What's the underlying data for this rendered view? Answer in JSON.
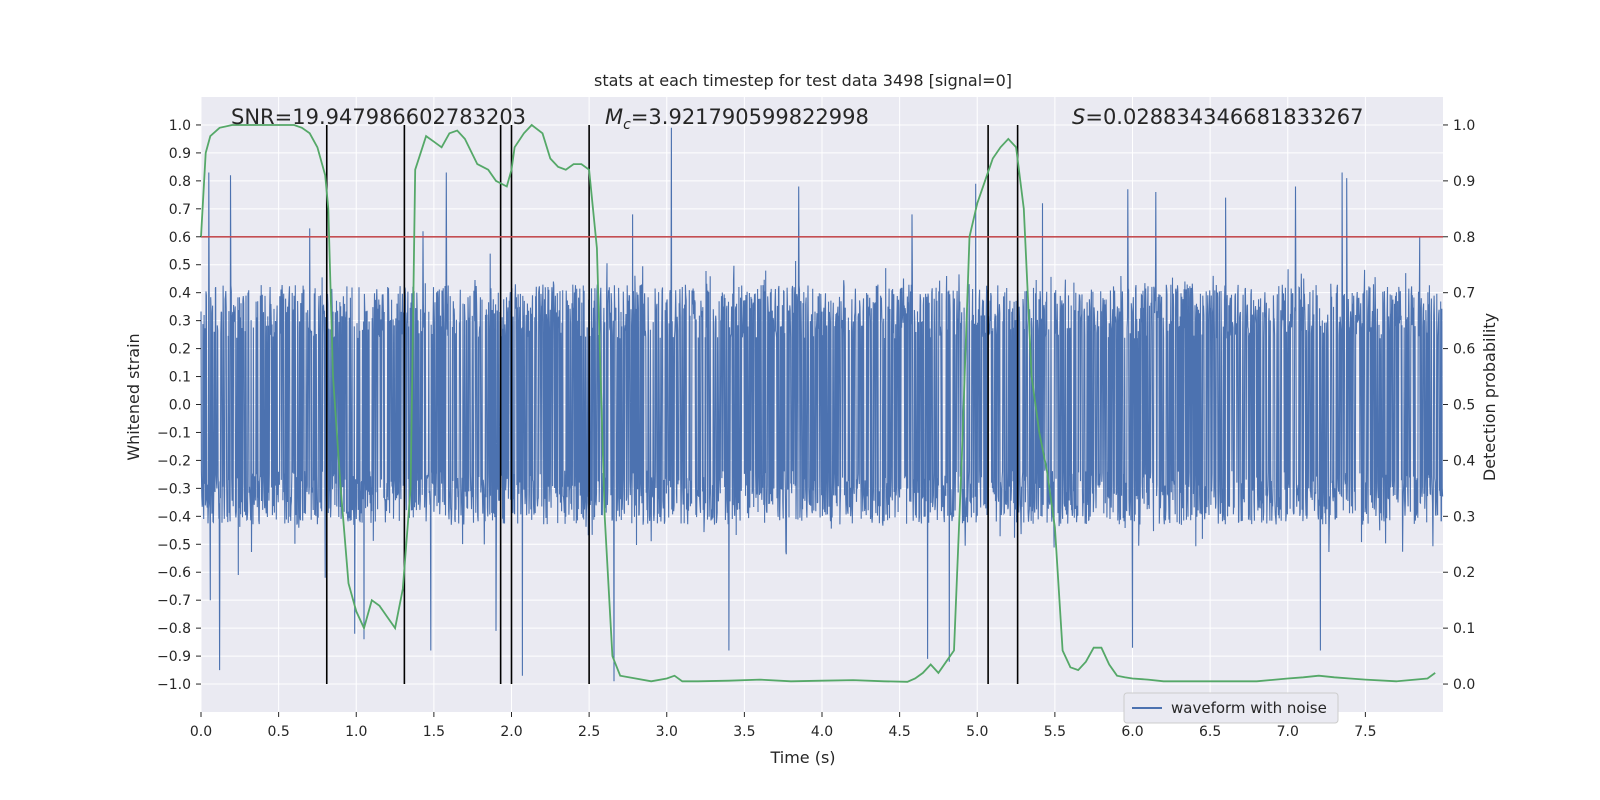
{
  "chart_data": {
    "type": "line",
    "title": "stats at each timestep for test data 3498 [signal=0]",
    "xlabel": "Time (s)",
    "ylabel_left": "Whitened strain",
    "ylabel_right": "Detection probability",
    "xlim": [
      0.0,
      8.0
    ],
    "ylim_left": [
      -1.1,
      1.1
    ],
    "ylim_right": [
      -0.05,
      1.05
    ],
    "x_ticks": [
      "0.0",
      "0.5",
      "1.0",
      "1.5",
      "2.0",
      "2.5",
      "3.0",
      "3.5",
      "4.0",
      "4.5",
      "5.0",
      "5.5",
      "6.0",
      "6.5",
      "7.0",
      "7.5"
    ],
    "x_tick_values": [
      0.0,
      0.5,
      1.0,
      1.5,
      2.0,
      2.5,
      3.0,
      3.5,
      4.0,
      4.5,
      5.0,
      5.5,
      6.0,
      6.5,
      7.0,
      7.5
    ],
    "y_left_ticks": [
      "1.0",
      "0.9",
      "0.8",
      "0.7",
      "0.6",
      "0.5",
      "0.4",
      "0.3",
      "0.2",
      "0.1",
      "0.0",
      "−0.1",
      "−0.2",
      "−0.3",
      "−0.4",
      "−0.5",
      "−0.6",
      "−0.7",
      "−0.8",
      "−0.9",
      "−1.0"
    ],
    "y_left_tick_values": [
      1.0,
      0.9,
      0.8,
      0.7,
      0.6,
      0.5,
      0.4,
      0.3,
      0.2,
      0.1,
      0.0,
      -0.1,
      -0.2,
      -0.3,
      -0.4,
      -0.5,
      -0.6,
      -0.7,
      -0.8,
      -0.9,
      -1.0
    ],
    "y_right_ticks": [
      "1.0",
      "0.9",
      "0.8",
      "0.7",
      "0.6",
      "0.5",
      "0.4",
      "0.3",
      "0.2",
      "0.1",
      "0.0"
    ],
    "y_right_tick_values": [
      1.0,
      0.9,
      0.8,
      0.7,
      0.6,
      0.5,
      0.4,
      0.3,
      0.2,
      0.1,
      0.0
    ],
    "annotations": {
      "snr": "SNR=19.947986602783203",
      "mc_symbol": "M",
      "mc_sub": "c",
      "mc_value": "=3.921790599822998",
      "s_symbol": "S",
      "s_value": "=0.028834346681833267"
    },
    "threshold": {
      "value": 0.8,
      "axis": "right",
      "color": "#c44e52"
    },
    "vertical_lines": [
      0.81,
      1.31,
      1.93,
      2.0,
      2.5,
      5.07,
      5.26
    ],
    "vertical_lines_range": [
      -1.0,
      1.0
    ],
    "waveform": {
      "name": "waveform with noise",
      "color": "#4c72b0",
      "points": 3200,
      "envelope": 0.43,
      "spikes": [
        [
          0.05,
          0.83
        ],
        [
          0.12,
          -0.95
        ],
        [
          0.06,
          -0.7
        ],
        [
          0.19,
          0.82
        ],
        [
          0.24,
          -0.61
        ],
        [
          0.7,
          0.63
        ],
        [
          0.8,
          -0.62
        ],
        [
          0.99,
          -0.82
        ],
        [
          1.05,
          -0.84
        ],
        [
          1.43,
          0.62
        ],
        [
          1.48,
          -0.88
        ],
        [
          1.58,
          0.83
        ],
        [
          1.9,
          -0.81
        ],
        [
          2.07,
          -0.97
        ],
        [
          2.66,
          -0.99
        ],
        [
          2.78,
          0.68
        ],
        [
          3.03,
          0.99
        ],
        [
          3.4,
          -0.88
        ],
        [
          3.85,
          0.78
        ],
        [
          4.58,
          0.68
        ],
        [
          4.68,
          -0.91
        ],
        [
          4.82,
          -0.92
        ],
        [
          4.99,
          0.79
        ],
        [
          5.42,
          0.72
        ],
        [
          5.97,
          0.77
        ],
        [
          6.0,
          -0.87
        ],
        [
          6.15,
          0.76
        ],
        [
          6.6,
          0.74
        ],
        [
          7.05,
          0.78
        ],
        [
          7.21,
          -0.88
        ],
        [
          7.35,
          0.83
        ],
        [
          7.38,
          0.81
        ],
        [
          7.85,
          0.6
        ]
      ]
    },
    "probability": {
      "name": "detection probability",
      "color": "#55a868",
      "x": [
        0.0,
        0.03,
        0.06,
        0.12,
        0.2,
        0.3,
        0.4,
        0.5,
        0.6,
        0.65,
        0.7,
        0.75,
        0.8,
        0.82,
        0.85,
        0.9,
        0.95,
        1.0,
        1.05,
        1.1,
        1.15,
        1.2,
        1.25,
        1.3,
        1.35,
        1.38,
        1.45,
        1.5,
        1.55,
        1.6,
        1.65,
        1.7,
        1.78,
        1.85,
        1.9,
        1.97,
        2.0,
        2.02,
        2.08,
        2.13,
        2.2,
        2.25,
        2.3,
        2.35,
        2.4,
        2.45,
        2.5,
        2.55,
        2.6,
        2.65,
        2.7,
        2.8,
        2.9,
        3.0,
        3.05,
        3.1,
        3.2,
        3.4,
        3.6,
        3.8,
        4.0,
        4.2,
        4.4,
        4.55,
        4.6,
        4.65,
        4.7,
        4.75,
        4.8,
        4.85,
        4.9,
        4.95,
        5.0,
        5.05,
        5.1,
        5.15,
        5.2,
        5.25,
        5.3,
        5.35,
        5.4,
        5.45,
        5.5,
        5.55,
        5.6,
        5.65,
        5.7,
        5.75,
        5.8,
        5.85,
        5.9,
        5.95,
        6.0,
        6.1,
        6.2,
        6.4,
        6.6,
        6.8,
        7.0,
        7.1,
        7.2,
        7.3,
        7.4,
        7.5,
        7.7,
        7.9,
        7.95
      ],
      "y": [
        0.8,
        0.95,
        0.98,
        0.995,
        1.0,
        1.0,
        1.0,
        1.0,
        1.0,
        0.995,
        0.985,
        0.96,
        0.91,
        0.85,
        0.55,
        0.35,
        0.18,
        0.13,
        0.1,
        0.15,
        0.14,
        0.12,
        0.1,
        0.17,
        0.35,
        0.92,
        0.98,
        0.97,
        0.96,
        0.985,
        0.99,
        0.975,
        0.93,
        0.92,
        0.9,
        0.89,
        0.92,
        0.96,
        0.985,
        1.0,
        0.985,
        0.94,
        0.925,
        0.92,
        0.93,
        0.93,
        0.92,
        0.78,
        0.3,
        0.05,
        0.015,
        0.01,
        0.005,
        0.01,
        0.015,
        0.005,
        0.005,
        0.006,
        0.008,
        0.005,
        0.006,
        0.007,
        0.005,
        0.004,
        0.01,
        0.02,
        0.035,
        0.02,
        0.04,
        0.06,
        0.4,
        0.8,
        0.86,
        0.9,
        0.94,
        0.96,
        0.975,
        0.96,
        0.85,
        0.55,
        0.45,
        0.38,
        0.28,
        0.06,
        0.03,
        0.025,
        0.04,
        0.065,
        0.065,
        0.035,
        0.015,
        0.012,
        0.01,
        0.008,
        0.005,
        0.005,
        0.005,
        0.005,
        0.01,
        0.012,
        0.015,
        0.012,
        0.01,
        0.008,
        0.005,
        0.01,
        0.02
      ]
    },
    "legend": {
      "label": "waveform with noise",
      "placement": "lower-right"
    }
  }
}
